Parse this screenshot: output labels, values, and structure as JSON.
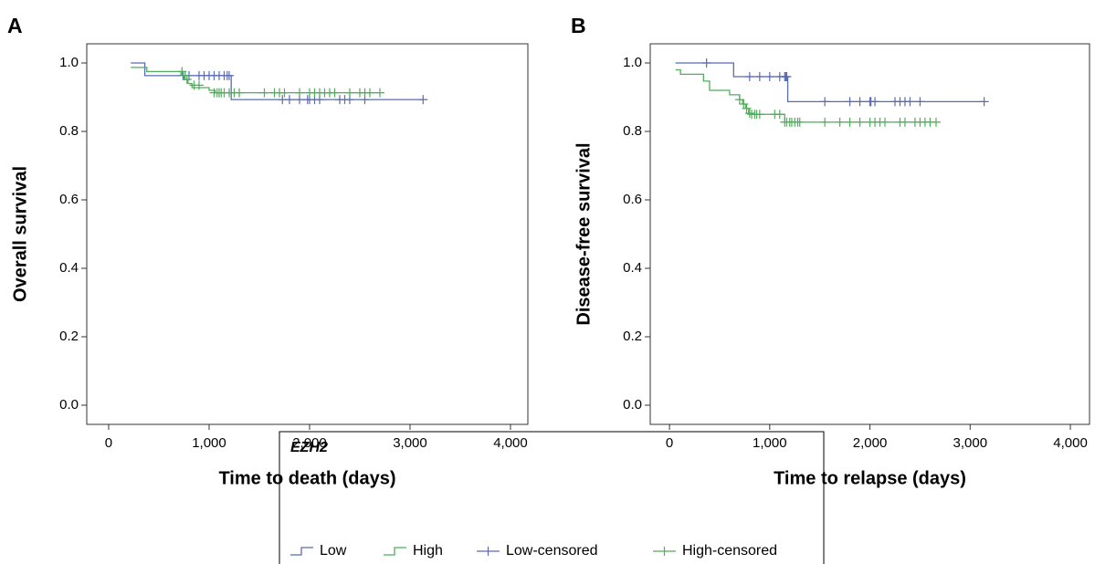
{
  "chart_data": [
    {
      "type": "line",
      "label": "A",
      "x_label": "Time to death (days)",
      "y_label": "Overall survival",
      "xlim": [
        -218,
        4173
      ],
      "ylim": [
        -0.056,
        1.056
      ],
      "xticks": [
        0,
        {
          "value": 1000,
          "label": "1,000"
        },
        {
          "value": 2000,
          "label": "2,000"
        },
        {
          "value": 3000,
          "label": "3,000"
        },
        {
          "value": 4000,
          "label": "4,000"
        }
      ],
      "yticks": [
        {
          "value": 0,
          "label": "0.0"
        },
        0.2,
        0.4,
        0.6,
        0.8,
        {
          "value": 1,
          "label": "1.0"
        }
      ],
      "series": [
        {
          "name": "Low",
          "color": "#5a6bb5",
          "style": "step",
          "x": [
            220,
            360,
            1220,
            3130
          ],
          "values": [
            1.0,
            0.963,
            0.893,
            0.893
          ]
        },
        {
          "name": "High",
          "color": "#4fae5a",
          "style": "step",
          "x": [
            220,
            380,
            720,
            750,
            790,
            830,
            1000,
            1060,
            2700
          ],
          "values": [
            0.987,
            0.975,
            0.963,
            0.952,
            0.94,
            0.928,
            0.92,
            0.913,
            0.913
          ]
        },
        {
          "name": "Low-censored",
          "color": "#5a6bb5",
          "style": "censor",
          "x": [
            740,
            760,
            800,
            900,
            950,
            1000,
            1050,
            1100,
            1150,
            1180,
            1200,
            1730,
            1800,
            1900,
            1980,
            2000,
            2050,
            2100,
            2300,
            2350,
            2400,
            2550,
            3130
          ],
          "values": [
            0.963,
            0.963,
            0.963,
            0.963,
            0.963,
            0.963,
            0.963,
            0.963,
            0.963,
            0.963,
            0.963,
            0.893,
            0.893,
            0.893,
            0.893,
            0.893,
            0.893,
            0.893,
            0.893,
            0.893,
            0.893,
            0.893,
            0.893
          ]
        },
        {
          "name": "High-censored",
          "color": "#4fae5a",
          "style": "censor",
          "x": [
            730,
            760,
            780,
            850,
            900,
            1050,
            1080,
            1100,
            1120,
            1150,
            1200,
            1250,
            1300,
            1550,
            1650,
            1700,
            1750,
            1900,
            2000,
            2050,
            2100,
            2150,
            2200,
            2250,
            2400,
            2500,
            2550,
            2600,
            2700
          ],
          "values": [
            0.975,
            0.963,
            0.952,
            0.935,
            0.935,
            0.913,
            0.913,
            0.913,
            0.913,
            0.913,
            0.913,
            0.913,
            0.913,
            0.913,
            0.913,
            0.913,
            0.913,
            0.913,
            0.913,
            0.913,
            0.913,
            0.913,
            0.913,
            0.913,
            0.913,
            0.913,
            0.913,
            0.913,
            0.913
          ]
        }
      ]
    },
    {
      "type": "line",
      "label": "B",
      "x_label": "Time to relapse (days)",
      "y_label": "Disease-free survival",
      "xlim": [
        -192,
        4191
      ],
      "ylim": [
        -0.056,
        1.056
      ],
      "xticks": [
        0,
        {
          "value": 1000,
          "label": "1,000"
        },
        {
          "value": 2000,
          "label": "2,000"
        },
        {
          "value": 3000,
          "label": "3,000"
        },
        {
          "value": 4000,
          "label": "4,000"
        }
      ],
      "yticks": [
        {
          "value": 0,
          "label": "0.0"
        },
        0.2,
        0.4,
        0.6,
        0.8,
        {
          "value": 1,
          "label": "1.0"
        }
      ],
      "series": [
        {
          "name": "Low",
          "color": "#5a6bb5",
          "style": "step",
          "x": [
            60,
            640,
            1180,
            3140
          ],
          "values": [
            1.0,
            0.96,
            0.887,
            0.887
          ]
        },
        {
          "name": "High",
          "color": "#4fae5a",
          "style": "step",
          "x": [
            60,
            110,
            340,
            400,
            600,
            700,
            730,
            760,
            790,
            820,
            1150,
            2660
          ],
          "values": [
            0.98,
            0.967,
            0.947,
            0.92,
            0.907,
            0.893,
            0.88,
            0.867,
            0.853,
            0.85,
            0.827,
            0.827
          ]
        },
        {
          "name": "Low-censored",
          "color": "#5a6bb5",
          "style": "censor",
          "x": [
            370,
            800,
            900,
            1000,
            1100,
            1150,
            1160,
            1170,
            1550,
            1800,
            1900,
            2000,
            2010,
            2050,
            2250,
            2300,
            2350,
            2400,
            2500,
            3140
          ],
          "values": [
            1.0,
            0.96,
            0.96,
            0.96,
            0.96,
            0.96,
            0.96,
            0.96,
            0.887,
            0.887,
            0.887,
            0.887,
            0.887,
            0.887,
            0.887,
            0.887,
            0.887,
            0.887,
            0.887,
            0.887
          ]
        },
        {
          "name": "High-censored",
          "color": "#4fae5a",
          "style": "censor",
          "x": [
            700,
            740,
            770,
            800,
            820,
            850,
            870,
            900,
            1050,
            1100,
            1150,
            1170,
            1200,
            1220,
            1250,
            1280,
            1300,
            1550,
            1700,
            1800,
            1900,
            2000,
            2050,
            2100,
            2150,
            2300,
            2350,
            2450,
            2500,
            2550,
            2600,
            2660
          ],
          "values": [
            0.893,
            0.88,
            0.867,
            0.853,
            0.85,
            0.85,
            0.85,
            0.85,
            0.85,
            0.85,
            0.827,
            0.827,
            0.827,
            0.827,
            0.827,
            0.827,
            0.827,
            0.827,
            0.827,
            0.827,
            0.827,
            0.827,
            0.827,
            0.827,
            0.827,
            0.827,
            0.827,
            0.827,
            0.827,
            0.827,
            0.827,
            0.827
          ]
        }
      ]
    }
  ],
  "legend": {
    "title": "EZH2"
  }
}
